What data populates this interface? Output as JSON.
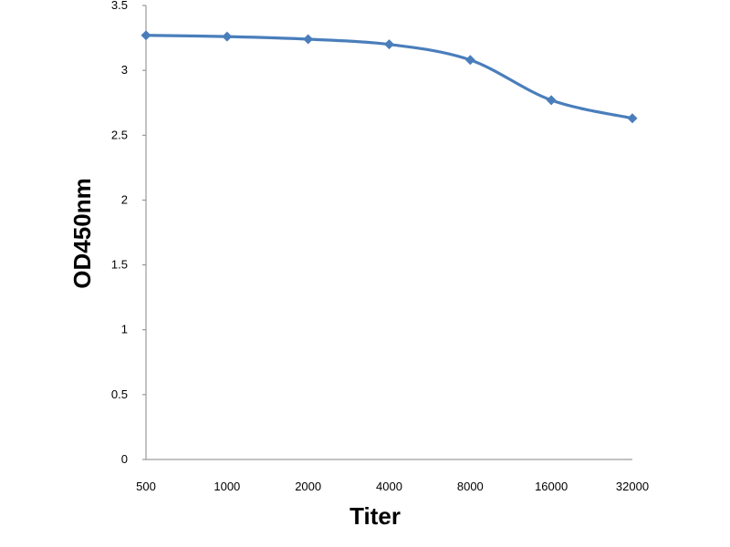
{
  "chart_data": {
    "type": "line",
    "title": "",
    "xlabel": "Titer",
    "ylabel": "OD450nm",
    "categories": [
      "500",
      "1000",
      "2000",
      "4000",
      "8000",
      "16000",
      "32000"
    ],
    "series": [
      {
        "values": [
          3.27,
          3.26,
          3.24,
          3.2,
          3.08,
          2.77,
          2.63
        ]
      }
    ],
    "ylim": [
      0,
      3.5
    ],
    "yticks": [
      "0",
      "0.5",
      "1",
      "1.5",
      "2",
      "2.5",
      "3",
      "3.5"
    ],
    "grid": false,
    "legend": "none",
    "line_color": "#4a7ebb",
    "smooth": true
  }
}
